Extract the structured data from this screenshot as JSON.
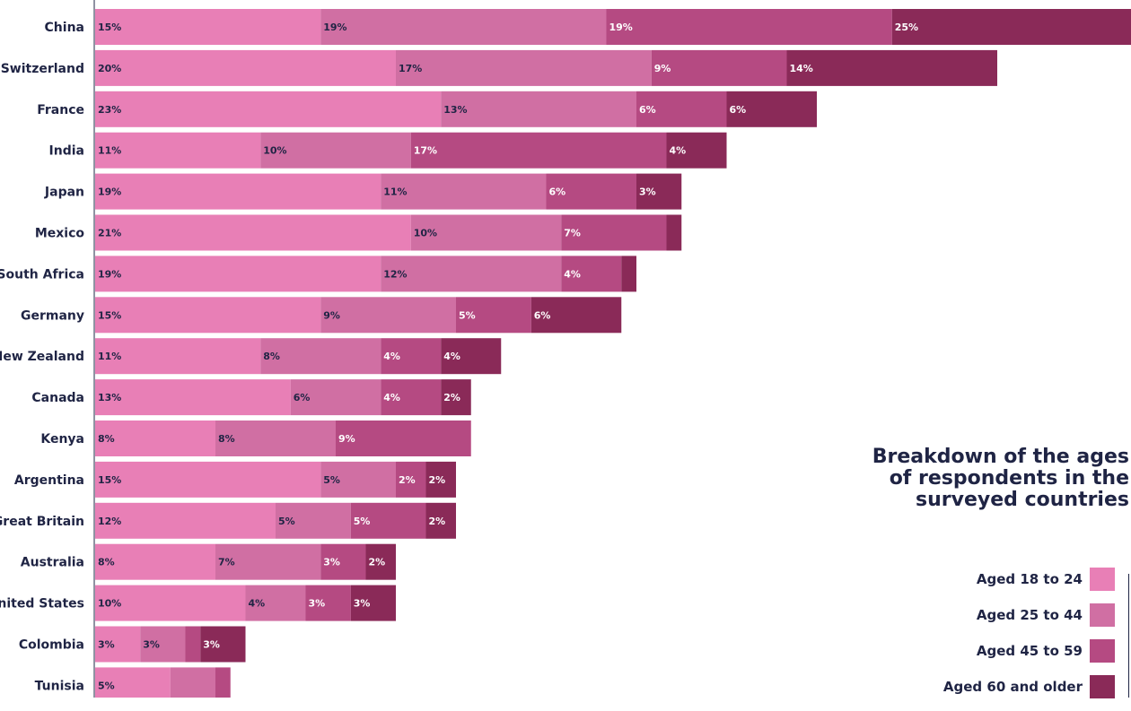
{
  "chart_data": {
    "type": "bar",
    "orientation": "horizontal",
    "stacked": true,
    "title": "Breakdown of the ages of respondents in the surveyed countries",
    "title_lines": [
      "Breakdown of the ages",
      "of respondents in the",
      "surveyed countries"
    ],
    "categories": [
      "China",
      "Switzerland",
      "France",
      "India",
      "Japan",
      "Mexico",
      "South Africa",
      "Germany",
      "New Zealand",
      "Canada",
      "Kenya",
      "Argentina",
      "Great Britain",
      "Australia",
      "United States",
      "Colombia",
      "Tunisia"
    ],
    "series": [
      {
        "name": "Aged 18 to 24",
        "color": "#e87fb6",
        "values": [
          15,
          20,
          23,
          11,
          19,
          21,
          19,
          15,
          11,
          13,
          8,
          15,
          12,
          8,
          10,
          3,
          5
        ]
      },
      {
        "name": "Aged 25 to 44",
        "color": "#d06fa3",
        "values": [
          19,
          17,
          13,
          10,
          11,
          10,
          12,
          9,
          8,
          6,
          8,
          5,
          5,
          7,
          4,
          3,
          3
        ]
      },
      {
        "name": "Aged 45 to 59",
        "color": "#b54a82",
        "values": [
          19,
          9,
          6,
          17,
          6,
          7,
          4,
          5,
          4,
          4,
          9,
          2,
          5,
          3,
          3,
          1,
          1
        ]
      },
      {
        "name": "Aged 60 and older",
        "color": "#8a2a58",
        "values": [
          25,
          14,
          6,
          4,
          3,
          1,
          1,
          6,
          4,
          2,
          0,
          2,
          2,
          2,
          3,
          3,
          0
        ]
      }
    ],
    "data_labels": [
      [
        "15%",
        "20%",
        "23%",
        "11%",
        "19%",
        "21%",
        "19%",
        "15%",
        "11%",
        "13%",
        "8%",
        "15%",
        "12%",
        "8%",
        "10%",
        "3%",
        "5%"
      ],
      [
        "19%",
        "17%",
        "13%",
        "10%",
        "11%",
        "10%",
        "12%",
        "9%",
        "8%",
        "6%",
        "8%",
        "5%",
        "5%",
        "7%",
        "4%",
        "3%",
        ""
      ],
      [
        "19%",
        "9%",
        "6%",
        "17%",
        "6%",
        "7%",
        "4%",
        "5%",
        "4%",
        "4%",
        "9%",
        "2%",
        "5%",
        "3%",
        "3%",
        "",
        ""
      ],
      [
        "25%",
        "14%",
        "6%",
        "4%",
        "3%",
        "",
        "",
        "6%",
        "4%",
        "2%",
        "",
        "2%",
        "2%",
        "2%",
        "3%",
        "3%",
        ""
      ]
    ],
    "label_colors": [
      "#1f2444",
      "#1f2444",
      "#ffffff",
      "#ffffff"
    ],
    "xlabel": "",
    "ylabel": "",
    "legend_position": "bottom-right",
    "grid": false
  }
}
